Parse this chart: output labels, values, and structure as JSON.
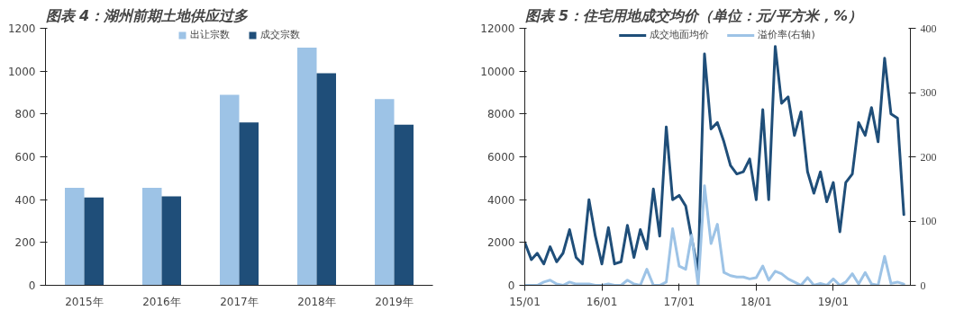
{
  "chart_data": [
    {
      "type": "bar",
      "title": "图表 4：湖州前期土地供应过多",
      "categories": [
        "2015年",
        "2016年",
        "2017年",
        "2018年",
        "2019年"
      ],
      "series": [
        {
          "name": "出让宗数",
          "color": "#9dc3e6",
          "values": [
            455,
            455,
            890,
            1110,
            870
          ]
        },
        {
          "name": "成交宗数",
          "color": "#1f4e79",
          "values": [
            410,
            415,
            760,
            990,
            750
          ]
        }
      ],
      "ylim": [
        0,
        1200
      ],
      "yticks": [
        0,
        200,
        400,
        600,
        800,
        1000,
        1200
      ],
      "grid": false,
      "legend": "top"
    },
    {
      "type": "line",
      "title": "图表 5：住宅用地成交均价（单位：元/平方米，%）",
      "x": [
        "2015-01",
        "2015-02",
        "2015-03",
        "2015-04",
        "2015-05",
        "2015-06",
        "2015-07",
        "2015-08",
        "2015-09",
        "2015-10",
        "2015-11",
        "2015-12",
        "2016-01",
        "2016-02",
        "2016-03",
        "2016-04",
        "2016-05",
        "2016-06",
        "2016-07",
        "2016-08",
        "2016-09",
        "2016-10",
        "2016-11",
        "2016-12",
        "2017-01",
        "2017-02",
        "2017-03",
        "2017-04",
        "2017-05",
        "2017-06",
        "2017-07",
        "2017-08",
        "2017-09",
        "2017-10",
        "2017-11",
        "2017-12",
        "2018-01",
        "2018-02",
        "2018-03",
        "2018-04",
        "2018-05",
        "2018-06",
        "2018-07",
        "2018-08",
        "2018-09",
        "2018-10",
        "2018-11",
        "2018-12",
        "2019-01",
        "2019-02",
        "2019-03",
        "2019-04",
        "2019-05",
        "2019-06",
        "2019-07",
        "2019-08",
        "2019-09",
        "2019-10",
        "2019-11",
        "2019-12"
      ],
      "series": [
        {
          "name": "成交地面均价",
          "color": "#1f4e79",
          "values": [
            2000,
            1200,
            1500,
            1000,
            1800,
            1100,
            1500,
            2600,
            1300,
            1000,
            4000,
            2300,
            1000,
            2700,
            1000,
            1100,
            2800,
            1300,
            2600,
            1700,
            4500,
            2300,
            7400,
            4000,
            4200,
            3700,
            2200,
            700,
            10800,
            7300,
            7600,
            6700,
            5600,
            5200,
            5300,
            5900,
            4000,
            8200,
            4000,
            11150,
            8500,
            8800,
            7000,
            8100,
            5300,
            4300,
            5300,
            3900,
            4800,
            2500,
            4800,
            5200,
            7600,
            7000,
            8300,
            6700,
            10600,
            8000,
            7800,
            3300
          ]
        },
        {
          "name": "溢价率(右轴)",
          "color": "#9dc3e6",
          "axis": "y2",
          "values": [
            0,
            0,
            0,
            5,
            8,
            2,
            0,
            5,
            2,
            2,
            2,
            0,
            0,
            2,
            0,
            0,
            8,
            2,
            0,
            25,
            0,
            0,
            5,
            88,
            30,
            25,
            78,
            0,
            155,
            65,
            95,
            20,
            15,
            13,
            13,
            10,
            12,
            30,
            8,
            22,
            18,
            10,
            5,
            0,
            12,
            0,
            3,
            0,
            10,
            0,
            5,
            18,
            2,
            20,
            2,
            0,
            45,
            3,
            5,
            2
          ]
        }
      ],
      "xlim": [
        "2015-01",
        "2020-01"
      ],
      "xticks": [
        {
          "value": "2015-01",
          "label": "15/01"
        },
        {
          "value": "2016-01",
          "label": "16/01"
        },
        {
          "value": "2017-01",
          "label": "17/01"
        },
        {
          "value": "2018-01",
          "label": "18/01"
        },
        {
          "value": "2019-01",
          "label": "19/01"
        }
      ],
      "ylim": [
        0,
        12000
      ],
      "yticks": [
        0,
        2000,
        4000,
        6000,
        8000,
        10000,
        12000
      ],
      "y2lim": [
        0,
        400
      ],
      "y2ticks": [
        0,
        100,
        200,
        300,
        400
      ],
      "grid": false,
      "legend": "top",
      "line_style": "solid",
      "marker": "none"
    }
  ]
}
